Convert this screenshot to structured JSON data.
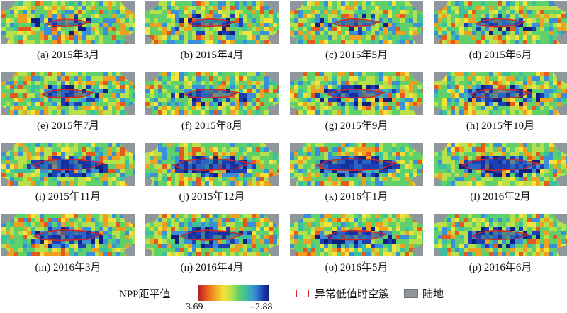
{
  "panels": [
    {
      "caption": "(a) 2015年3月",
      "strength": 0.25
    },
    {
      "caption": "(b) 2015年4月",
      "strength": 0.3
    },
    {
      "caption": "(c) 2015年5月",
      "strength": 0.3
    },
    {
      "caption": "(d) 2015年6月",
      "strength": 0.35
    },
    {
      "caption": "(e) 2015年7月",
      "strength": 0.4
    },
    {
      "caption": "(f) 2015年8月",
      "strength": 0.45
    },
    {
      "caption": "(g) 2015年9月",
      "strength": 0.5
    },
    {
      "caption": "(h) 2015年10月",
      "strength": 0.55
    },
    {
      "caption": "(i) 2015年11月",
      "strength": 0.75
    },
    {
      "caption": "(j) 2015年12月",
      "strength": 0.85
    },
    {
      "caption": "(k) 2016年1月",
      "strength": 0.9
    },
    {
      "caption": "(l) 2016年2月",
      "strength": 0.85
    },
    {
      "caption": "(m) 2016年3月",
      "strength": 0.7
    },
    {
      "caption": "(n) 2016年4月",
      "strength": 0.6
    },
    {
      "caption": "(o) 2016年5月",
      "strength": 0.55
    },
    {
      "caption": "(p) 2016年6月",
      "strength": 0.5
    }
  ],
  "legend": {
    "title": "NPP距平值",
    "min_label": "3.69",
    "max_label": "–2.88",
    "cluster_label": "异常低值时空簇",
    "land_label": "陆地"
  },
  "colors": {
    "cluster_outline": "#d7261e",
    "land": "#8f979d",
    "ramp": [
      "#b2182b",
      "#e45a1c",
      "#f0a020",
      "#f6e23a",
      "#b8e04a",
      "#5fd06a",
      "#3cc0a0",
      "#3a8fd8",
      "#1d3fb4",
      "#0e1f80"
    ]
  }
}
